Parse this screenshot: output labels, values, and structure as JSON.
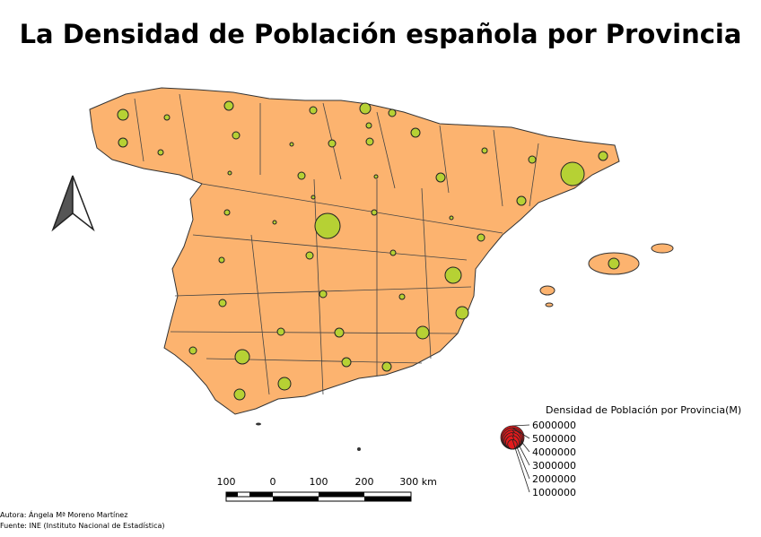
{
  "title": "La Densidad de Población española por Provincia",
  "legend": {
    "title": "Densidad de Población por Provincia(M)",
    "values": [
      6000000,
      5000000,
      4000000,
      3000000,
      2000000,
      1000000
    ],
    "color": "#e31a1c"
  },
  "scale_bar": {
    "labels": [
      "100",
      "0",
      "100",
      "200",
      "300 km"
    ]
  },
  "credits": [
    "Autora: Ángela Mª Moreno Martínez",
    "Fuente: INE (Instituto Nacional de Estadística)"
  ]
}
